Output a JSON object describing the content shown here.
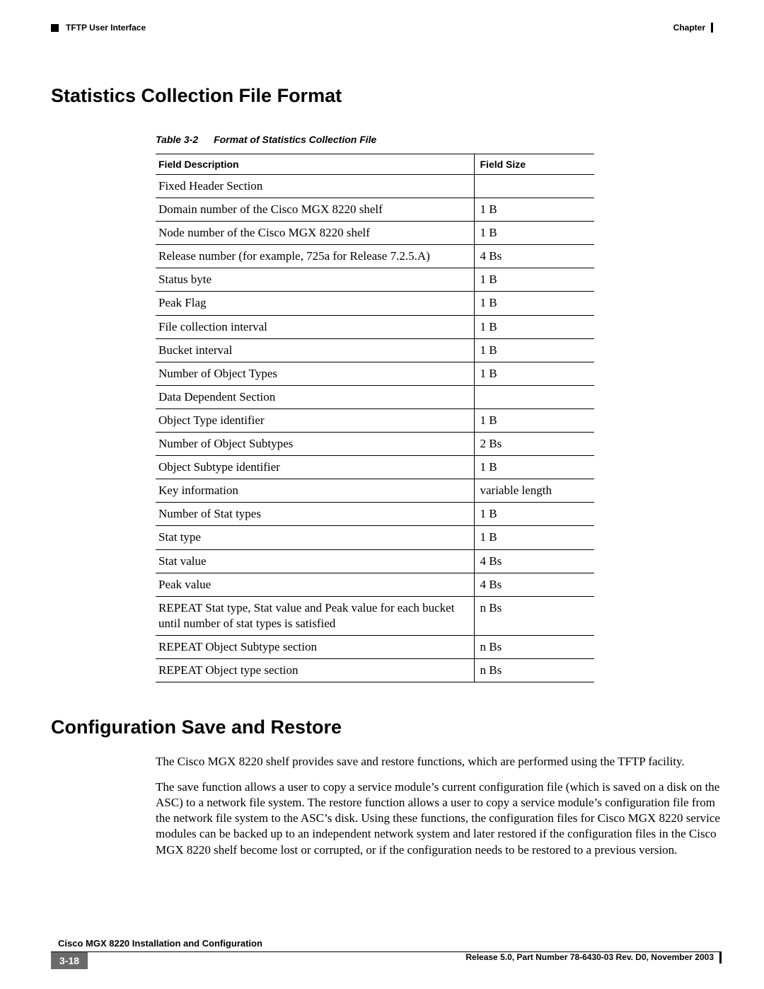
{
  "header": {
    "section_label": "TFTP User Interface",
    "chapter_label": "Chapter"
  },
  "section1": {
    "title": "Statistics Collection File Format",
    "table_caption_label": "Table 3-2",
    "table_caption_title": "Format of Statistics Collection File",
    "columns": {
      "desc": "Field Description",
      "size": "Field Size"
    },
    "rows": [
      {
        "desc": "Fixed Header Section",
        "size": ""
      },
      {
        "desc": "Domain number of the Cisco MGX 8220 shelf",
        "size": "1 B"
      },
      {
        "desc": "Node number of the Cisco MGX 8220 shelf",
        "size": "1 B"
      },
      {
        "desc": "Release number (for example, 725a for Release 7.2.5.A)",
        "size": "4 Bs"
      },
      {
        "desc": "Status byte",
        "size": "1 B"
      },
      {
        "desc": "Peak Flag",
        "size": "1 B"
      },
      {
        "desc": "File collection interval",
        "size": "1 B"
      },
      {
        "desc": "Bucket interval",
        "size": "1 B"
      },
      {
        "desc": "Number of Object Types",
        "size": "1 B"
      },
      {
        "desc": "Data Dependent Section",
        "size": ""
      },
      {
        "desc": "Object Type identifier",
        "size": "1 B"
      },
      {
        "desc": "Number of Object Subtypes",
        "size": "2 Bs"
      },
      {
        "desc": "Object Subtype identifier",
        "size": "1 B"
      },
      {
        "desc": "Key information",
        "size": "variable length"
      },
      {
        "desc": "Number of Stat types",
        "size": "1 B"
      },
      {
        "desc": "Stat type",
        "size": "1 B"
      },
      {
        "desc": "Stat value",
        "size": "4 Bs"
      },
      {
        "desc": "Peak value",
        "size": "4 Bs"
      },
      {
        "desc": "REPEAT Stat type, Stat value and Peak value for each bucket until number of stat types is satisfied",
        "size": "n Bs"
      },
      {
        "desc": "REPEAT Object Subtype section",
        "size": "n Bs"
      },
      {
        "desc": "REPEAT Object type section",
        "size": "n Bs"
      }
    ]
  },
  "section2": {
    "title": "Configuration Save and Restore",
    "p1": "The Cisco MGX 8220 shelf provides save and restore functions, which are performed using the TFTP facility.",
    "p2": "The save function allows a user to copy a service module’s current configuration file (which is saved on a disk on the ASC) to a network file system. The restore function allows a user to copy a service module’s configuration file from the network file system to the ASC’s disk. Using these functions, the configuration files for Cisco MGX 8220 service modules can be backed up to an independent network system and later restored if the configuration files in the Cisco MGX 8220 shelf become lost or corrupted, or if the configuration needs to be restored to a previous version."
  },
  "footer": {
    "page_number": "3-18",
    "doc_title": "Cisco MGX 8220 Installation and Configuration",
    "release_line": "Release 5.0, Part Number 78-6430-03 Rev. D0, November 2003"
  }
}
